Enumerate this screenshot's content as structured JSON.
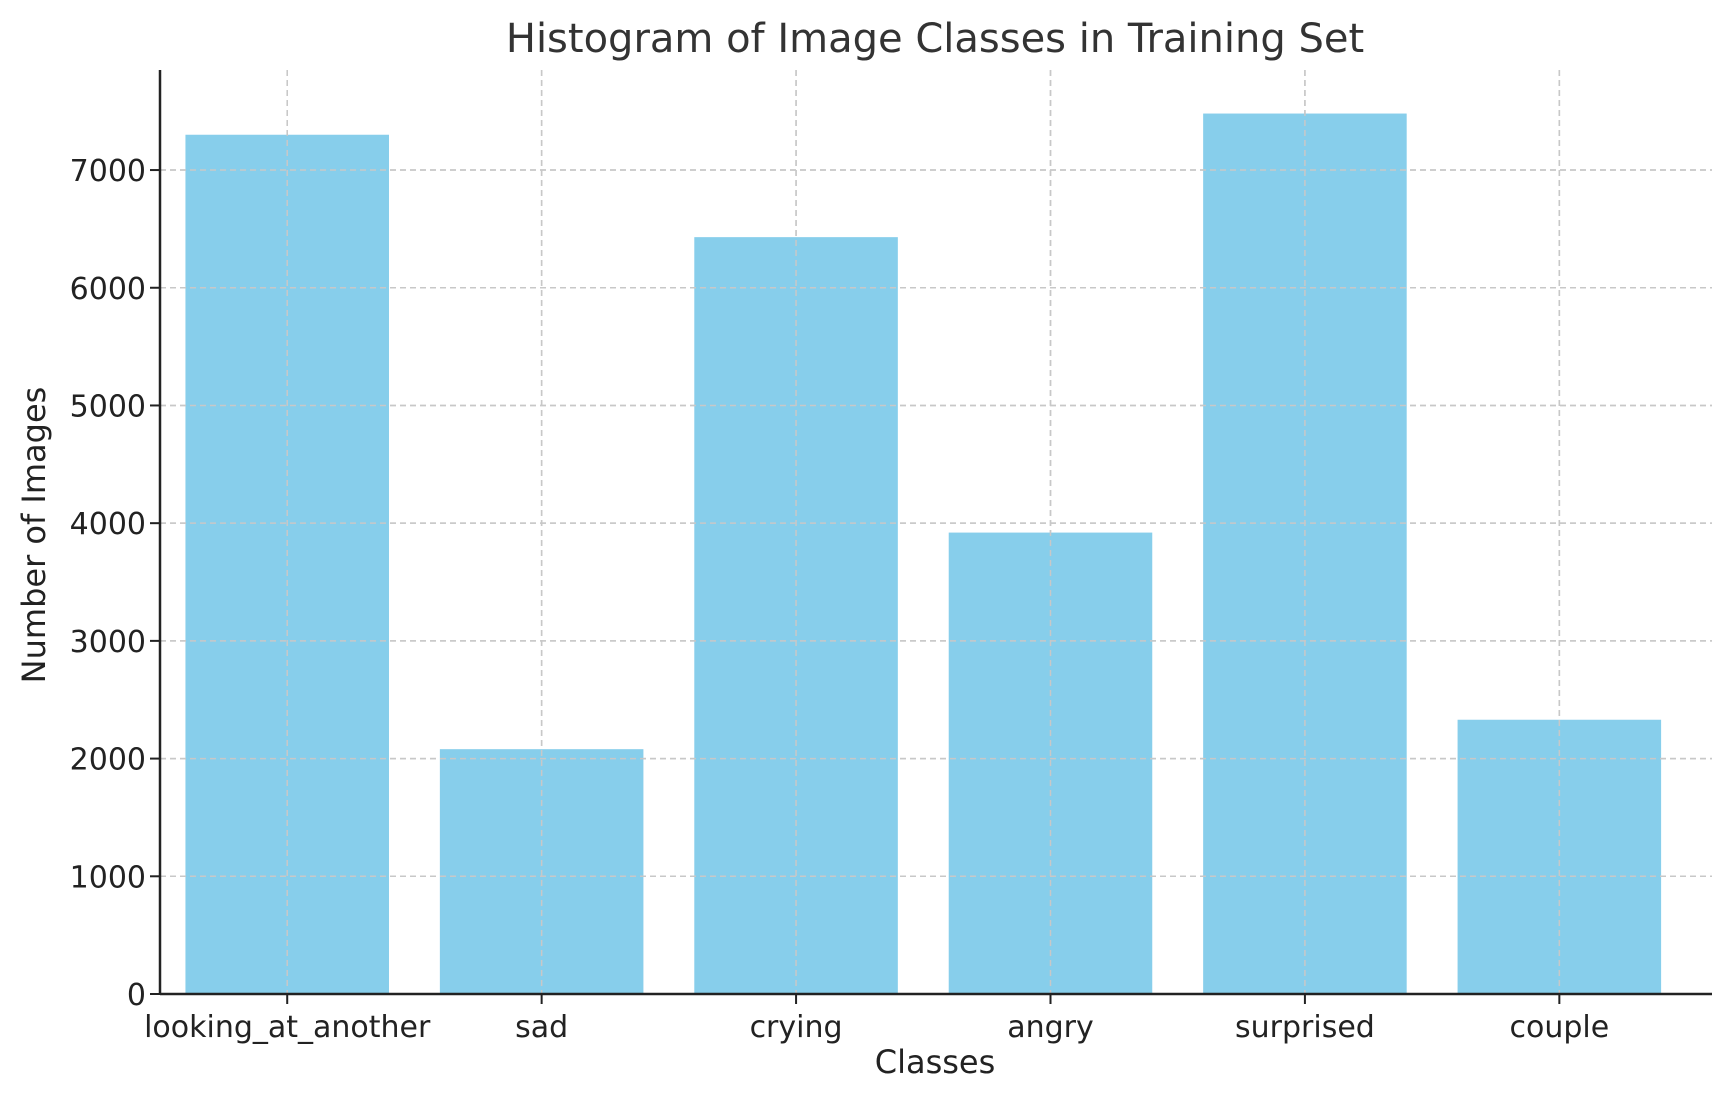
{
  "chart_data": {
    "type": "bar",
    "title": "Histogram of Image Classes in Training Set",
    "xlabel": "Classes",
    "ylabel": "Number of Images",
    "categories": [
      "looking_at_another",
      "sad",
      "crying",
      "angry",
      "surprised",
      "couple"
    ],
    "values": [
      7300,
      2080,
      6430,
      3920,
      7480,
      2330
    ],
    "ylim": [
      0,
      7850
    ],
    "yticks": [
      0,
      1000,
      2000,
      3000,
      4000,
      5000,
      6000,
      7000
    ],
    "grid": true,
    "bar_color": "#87ceeb"
  }
}
